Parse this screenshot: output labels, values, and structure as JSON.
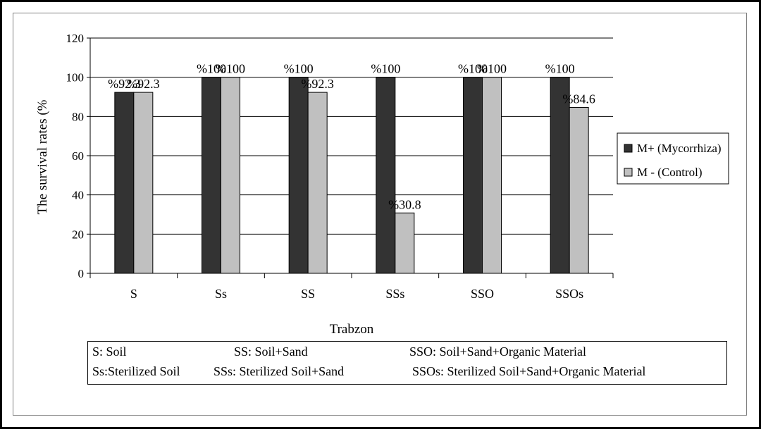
{
  "chart_data": {
    "type": "bar",
    "categories": [
      "S",
      "Ss",
      "SS",
      "SSs",
      "SSO",
      "SSOs"
    ],
    "series": [
      {
        "name": "M+ (Mycorrhiza)",
        "values": [
          92.3,
          100,
          100,
          100,
          100,
          100
        ],
        "labels": [
          "%92.3",
          "%100",
          "%100",
          "%100",
          "%100",
          "%100"
        ],
        "color": "#333333"
      },
      {
        "name": "M - (Control)",
        "values": [
          92.3,
          100,
          92.3,
          30.8,
          100,
          84.6
        ],
        "labels": [
          "%92.3",
          "%100",
          "%92.3",
          "%30.8",
          "%100",
          "%84.6"
        ],
        "color": "#c0c0c0"
      }
    ],
    "xlabel": "Trabzon",
    "ylabel": "The survival rates (%",
    "ylim": [
      0,
      120
    ],
    "yticks": [
      0,
      20,
      40,
      60,
      80,
      100,
      120
    ],
    "grid": true,
    "legend": "right"
  },
  "key": [
    {
      "text": "S: Soil"
    },
    {
      "text": "SS: Soil+Sand"
    },
    {
      "text": "SSO: Soil+Sand+Organic Material"
    },
    {
      "text": "Ss:Sterilized Soil"
    },
    {
      "text": "SSs: Sterilized Soil+Sand"
    },
    {
      "text": "SSOs: Sterilized Soil+Sand+Organic Material"
    }
  ]
}
